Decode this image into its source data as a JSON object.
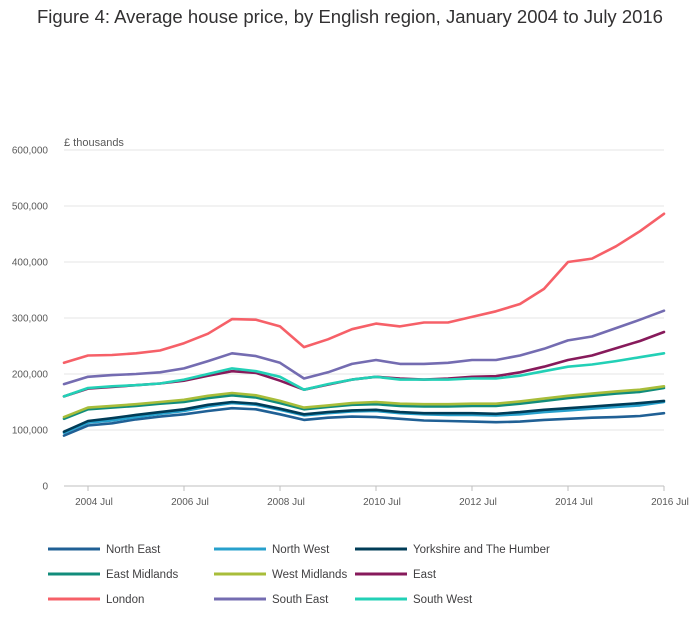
{
  "title": "Figure 4: Average house price, by English region, January 2004 to July 2016",
  "chart_data": {
    "type": "line",
    "title": "Figure 4: Average house price, by English region, January 2004 to July 2016",
    "ylabel": "£ thousands",
    "xlabel": "",
    "ylim": [
      0,
      600000
    ],
    "yticks": [
      0,
      100000,
      200000,
      300000,
      400000,
      500000,
      600000
    ],
    "ytick_labels": [
      "0",
      "100,000",
      "200,000",
      "300,000",
      "400,000",
      "500,000",
      "600,000"
    ],
    "xlim": [
      2004.0,
      2016.5
    ],
    "xticks": [
      2004.5,
      2006.5,
      2008.5,
      2010.5,
      2012.5,
      2014.5,
      2016.5
    ],
    "xtick_labels": [
      "2004 Jul",
      "2006 Jul",
      "2008 Jul",
      "2010 Jul",
      "2012 Jul",
      "2014 Jul",
      "2016 Jul"
    ],
    "grid": true,
    "legend_position": "bottom",
    "x": [
      2004.0,
      2004.5,
      2005.0,
      2005.5,
      2006.0,
      2006.5,
      2007.0,
      2007.5,
      2008.0,
      2008.5,
      2009.0,
      2009.5,
      2010.0,
      2010.5,
      2011.0,
      2011.5,
      2012.0,
      2012.5,
      2013.0,
      2013.5,
      2014.0,
      2014.5,
      2015.0,
      2015.5,
      2016.0,
      2016.5
    ],
    "series": [
      {
        "name": "North East",
        "color": "#206095",
        "values": [
          90000,
          108000,
          112000,
          119000,
          124000,
          128000,
          134000,
          139000,
          137000,
          128000,
          118000,
          122000,
          124000,
          123000,
          120000,
          117000,
          116000,
          115000,
          114000,
          115000,
          118000,
          120000,
          122000,
          123000,
          125000,
          130000
        ]
      },
      {
        "name": "North West",
        "color": "#27a0cc",
        "values": [
          95000,
          113000,
          117000,
          123000,
          129000,
          134000,
          142000,
          148000,
          145000,
          136000,
          126000,
          130000,
          133000,
          134000,
          130000,
          128000,
          127000,
          127000,
          126000,
          128000,
          132000,
          135000,
          138000,
          141000,
          144000,
          150000
        ]
      },
      {
        "name": "Yorkshire and The Humber",
        "color": "#003c57",
        "values": [
          97000,
          116000,
          121000,
          127000,
          132000,
          137000,
          145000,
          150000,
          147000,
          138000,
          128000,
          132000,
          135000,
          136000,
          132000,
          130000,
          130000,
          130000,
          129000,
          132000,
          136000,
          139000,
          142000,
          145000,
          148000,
          152000
        ]
      },
      {
        "name": "East Midlands",
        "color": "#118c7b",
        "values": [
          120000,
          137000,
          140000,
          143000,
          147000,
          150000,
          157000,
          162000,
          158000,
          148000,
          137000,
          141000,
          145000,
          146000,
          143000,
          142000,
          142000,
          143000,
          143000,
          147000,
          152000,
          157000,
          161000,
          165000,
          168000,
          175000
        ]
      },
      {
        "name": "West Midlands",
        "color": "#a8bd3a",
        "values": [
          123000,
          140000,
          143000,
          146000,
          150000,
          154000,
          161000,
          166000,
          162000,
          152000,
          140000,
          144000,
          148000,
          150000,
          147000,
          146000,
          146000,
          147000,
          147000,
          151000,
          156000,
          161000,
          165000,
          169000,
          172000,
          178000
        ]
      },
      {
        "name": "East",
        "color": "#871a5b",
        "values": [
          160000,
          174000,
          177000,
          180000,
          183000,
          188000,
          197000,
          205000,
          202000,
          188000,
          172000,
          181000,
          190000,
          195000,
          192000,
          190000,
          192000,
          195000,
          196000,
          203000,
          213000,
          225000,
          233000,
          246000,
          259000,
          275000
        ]
      },
      {
        "name": "London",
        "color": "#f66068",
        "values": [
          220000,
          233000,
          234000,
          237000,
          242000,
          255000,
          272000,
          298000,
          297000,
          285000,
          248000,
          262000,
          280000,
          290000,
          285000,
          292000,
          292000,
          302000,
          312000,
          325000,
          352000,
          400000,
          406000,
          428000,
          455000,
          486000
        ]
      },
      {
        "name": "South East",
        "color": "#746cb1",
        "values": [
          182000,
          195000,
          198000,
          200000,
          203000,
          210000,
          223000,
          237000,
          232000,
          220000,
          192000,
          203000,
          218000,
          225000,
          218000,
          218000,
          220000,
          225000,
          225000,
          233000,
          245000,
          260000,
          267000,
          282000,
          297000,
          313000
        ]
      },
      {
        "name": "South West",
        "color": "#22d0b6",
        "values": [
          160000,
          175000,
          178000,
          180000,
          183000,
          190000,
          200000,
          210000,
          205000,
          195000,
          172000,
          182000,
          190000,
          195000,
          190000,
          190000,
          190000,
          192000,
          192000,
          197000,
          205000,
          213000,
          217000,
          223000,
          230000,
          237000
        ]
      }
    ]
  }
}
